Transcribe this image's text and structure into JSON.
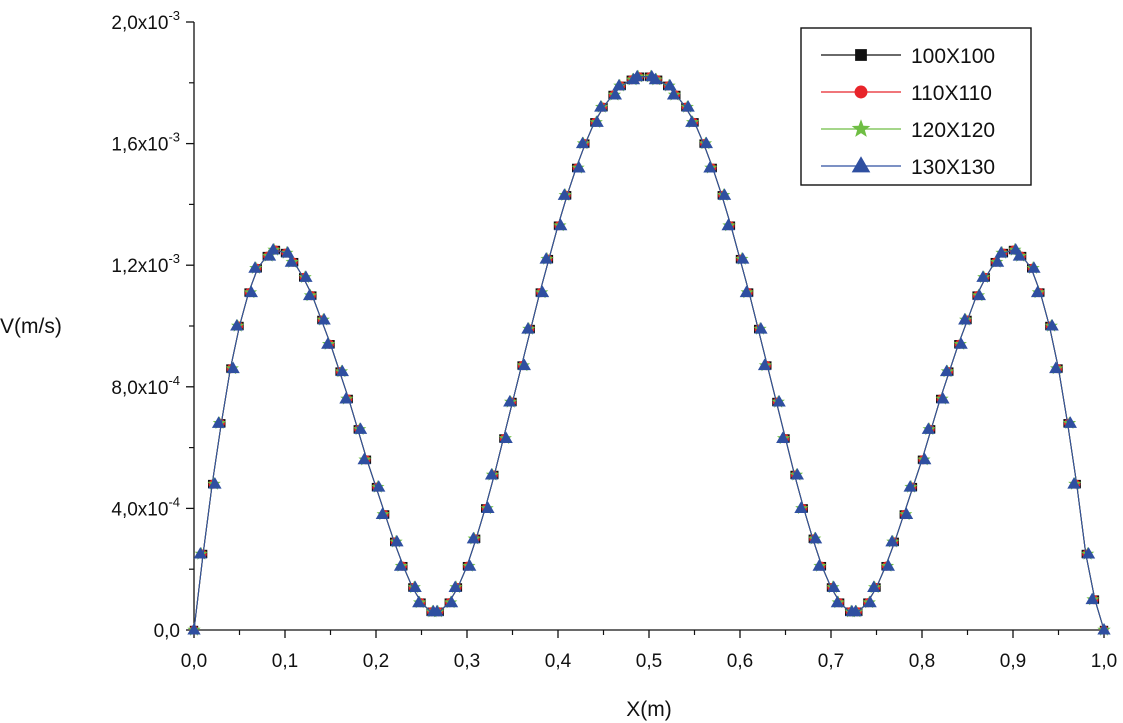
{
  "chart_data": {
    "type": "line",
    "title": "",
    "xlabel": "X(m)",
    "ylabel": "V(m/s)",
    "xlim": [
      0,
      1
    ],
    "ylim": [
      0,
      0.002
    ],
    "x_ticks": [
      {
        "value": 0.0,
        "label": "0,0"
      },
      {
        "value": 0.1,
        "label": "0,1"
      },
      {
        "value": 0.2,
        "label": "0,2"
      },
      {
        "value": 0.3,
        "label": "0,3"
      },
      {
        "value": 0.4,
        "label": "0,4"
      },
      {
        "value": 0.5,
        "label": "0,5"
      },
      {
        "value": 0.6,
        "label": "0,6"
      },
      {
        "value": 0.7,
        "label": "0,7"
      },
      {
        "value": 0.8,
        "label": "0,8"
      },
      {
        "value": 0.9,
        "label": "0,9"
      },
      {
        "value": 1.0,
        "label": "1,0"
      }
    ],
    "y_ticks": [
      {
        "value": 0,
        "mantissa": "0,0",
        "exponent": ""
      },
      {
        "value": 0.0004,
        "mantissa": "4,0x10",
        "exponent": "-4"
      },
      {
        "value": 0.0008,
        "mantissa": "8,0x10",
        "exponent": "-4"
      },
      {
        "value": 0.0012,
        "mantissa": "1,2x10",
        "exponent": "-3"
      },
      {
        "value": 0.0016,
        "mantissa": "1,6x10",
        "exponent": "-3"
      },
      {
        "value": 0.002,
        "mantissa": "2,0x10",
        "exponent": "-3"
      }
    ],
    "grid": false,
    "legend_position": "top-right",
    "series": [
      {
        "name": "100X100",
        "color": "#111111",
        "marker": "square",
        "x": [
          0,
          0.01,
          0.02,
          0.03,
          0.04,
          0.05,
          0.06,
          0.07,
          0.08,
          0.09,
          0.1,
          0.11,
          0.12,
          0.13,
          0.14,
          0.15,
          0.16,
          0.17,
          0.18,
          0.19,
          0.2,
          0.21,
          0.22,
          0.23,
          0.24,
          0.25,
          0.26,
          0.27,
          0.28,
          0.29,
          0.3,
          0.31,
          0.32,
          0.33,
          0.34,
          0.35,
          0.36,
          0.37,
          0.38,
          0.39,
          0.4,
          0.41,
          0.42,
          0.43,
          0.44,
          0.45,
          0.46,
          0.47,
          0.48,
          0.49,
          0.5,
          0.51,
          0.52,
          0.53,
          0.54,
          0.55,
          0.56,
          0.57,
          0.58,
          0.59,
          0.6,
          0.61,
          0.62,
          0.63,
          0.64,
          0.65,
          0.66,
          0.67,
          0.68,
          0.69,
          0.7,
          0.71,
          0.72,
          0.73,
          0.74,
          0.75,
          0.76,
          0.77,
          0.78,
          0.79,
          0.8,
          0.81,
          0.82,
          0.83,
          0.84,
          0.85,
          0.86,
          0.87,
          0.88,
          0.89,
          0.9,
          0.91,
          0.92,
          0.93,
          0.94,
          0.95,
          0.96,
          0.97,
          0.98,
          0.99,
          1
        ],
        "y": [
          0,
          0.00025,
          0.00048,
          0.00068,
          0.00086,
          0.001,
          0.00111,
          0.00119,
          0.00123,
          0.00125,
          0.00124,
          0.00121,
          0.00116,
          0.0011,
          0.00102,
          0.00094,
          0.00085,
          0.00076,
          0.00066,
          0.00056,
          0.00047,
          0.00038,
          0.00029,
          0.00021,
          0.00014,
          9e-05,
          6e-05,
          6e-05,
          9e-05,
          0.00014,
          0.00021,
          0.0003,
          0.0004,
          0.00051,
          0.00063,
          0.00075,
          0.00087,
          0.00099,
          0.00111,
          0.00122,
          0.00133,
          0.00143,
          0.00152,
          0.0016,
          0.00167,
          0.00172,
          0.00176,
          0.00179,
          0.00181,
          0.00182,
          0.00182,
          0.00181,
          0.00179,
          0.00176,
          0.00172,
          0.00167,
          0.0016,
          0.00152,
          0.00143,
          0.00133,
          0.00122,
          0.00111,
          0.00099,
          0.00087,
          0.00075,
          0.00063,
          0.00051,
          0.0004,
          0.0003,
          0.00021,
          0.00014,
          9e-05,
          6e-05,
          6e-05,
          9e-05,
          0.00014,
          0.00021,
          0.00029,
          0.00038,
          0.00047,
          0.00056,
          0.00066,
          0.00076,
          0.00085,
          0.00094,
          0.00102,
          0.0011,
          0.00116,
          0.00121,
          0.00124,
          0.00125,
          0.00123,
          0.00119,
          0.00111,
          0.001,
          0.00086,
          0.00068,
          0.00048,
          0.00025,
          0.0001,
          0
        ]
      },
      {
        "name": "110X110",
        "color": "#e8242a",
        "marker": "circle",
        "x": [
          0,
          0.01,
          0.02,
          0.03,
          0.04,
          0.05,
          0.06,
          0.07,
          0.08,
          0.09,
          0.1,
          0.11,
          0.12,
          0.13,
          0.14,
          0.15,
          0.16,
          0.17,
          0.18,
          0.19,
          0.2,
          0.21,
          0.22,
          0.23,
          0.24,
          0.25,
          0.26,
          0.27,
          0.28,
          0.29,
          0.3,
          0.31,
          0.32,
          0.33,
          0.34,
          0.35,
          0.36,
          0.37,
          0.38,
          0.39,
          0.4,
          0.41,
          0.42,
          0.43,
          0.44,
          0.45,
          0.46,
          0.47,
          0.48,
          0.49,
          0.5,
          0.51,
          0.52,
          0.53,
          0.54,
          0.55,
          0.56,
          0.57,
          0.58,
          0.59,
          0.6,
          0.61,
          0.62,
          0.63,
          0.64,
          0.65,
          0.66,
          0.67,
          0.68,
          0.69,
          0.7,
          0.71,
          0.72,
          0.73,
          0.74,
          0.75,
          0.76,
          0.77,
          0.78,
          0.79,
          0.8,
          0.81,
          0.82,
          0.83,
          0.84,
          0.85,
          0.86,
          0.87,
          0.88,
          0.89,
          0.9,
          0.91,
          0.92,
          0.93,
          0.94,
          0.95,
          0.96,
          0.97,
          0.98,
          0.99,
          1
        ],
        "y": [
          0,
          0.00025,
          0.00048,
          0.00068,
          0.00086,
          0.001,
          0.00111,
          0.00119,
          0.00123,
          0.00125,
          0.00124,
          0.00121,
          0.00116,
          0.0011,
          0.00102,
          0.00094,
          0.00085,
          0.00076,
          0.00066,
          0.00056,
          0.00047,
          0.00038,
          0.00029,
          0.00021,
          0.00014,
          9e-05,
          6e-05,
          6e-05,
          9e-05,
          0.00014,
          0.00021,
          0.0003,
          0.0004,
          0.00051,
          0.00063,
          0.00075,
          0.00087,
          0.00099,
          0.00111,
          0.00122,
          0.00133,
          0.00143,
          0.00152,
          0.0016,
          0.00167,
          0.00172,
          0.00176,
          0.00179,
          0.00181,
          0.00182,
          0.00182,
          0.00181,
          0.00179,
          0.00176,
          0.00172,
          0.00167,
          0.0016,
          0.00152,
          0.00143,
          0.00133,
          0.00122,
          0.00111,
          0.00099,
          0.00087,
          0.00075,
          0.00063,
          0.00051,
          0.0004,
          0.0003,
          0.00021,
          0.00014,
          9e-05,
          6e-05,
          6e-05,
          9e-05,
          0.00014,
          0.00021,
          0.00029,
          0.00038,
          0.00047,
          0.00056,
          0.00066,
          0.00076,
          0.00085,
          0.00094,
          0.00102,
          0.0011,
          0.00116,
          0.00121,
          0.00124,
          0.00125,
          0.00123,
          0.00119,
          0.00111,
          0.001,
          0.00086,
          0.00068,
          0.00048,
          0.00025,
          0.0001,
          0
        ]
      },
      {
        "name": "120X120",
        "color": "#6fbe44",
        "marker": "star",
        "x": [
          0,
          0.01,
          0.02,
          0.03,
          0.04,
          0.05,
          0.06,
          0.07,
          0.08,
          0.09,
          0.1,
          0.11,
          0.12,
          0.13,
          0.14,
          0.15,
          0.16,
          0.17,
          0.18,
          0.19,
          0.2,
          0.21,
          0.22,
          0.23,
          0.24,
          0.25,
          0.26,
          0.27,
          0.28,
          0.29,
          0.3,
          0.31,
          0.32,
          0.33,
          0.34,
          0.35,
          0.36,
          0.37,
          0.38,
          0.39,
          0.4,
          0.41,
          0.42,
          0.43,
          0.44,
          0.45,
          0.46,
          0.47,
          0.48,
          0.49,
          0.5,
          0.51,
          0.52,
          0.53,
          0.54,
          0.55,
          0.56,
          0.57,
          0.58,
          0.59,
          0.6,
          0.61,
          0.62,
          0.63,
          0.64,
          0.65,
          0.66,
          0.67,
          0.68,
          0.69,
          0.7,
          0.71,
          0.72,
          0.73,
          0.74,
          0.75,
          0.76,
          0.77,
          0.78,
          0.79,
          0.8,
          0.81,
          0.82,
          0.83,
          0.84,
          0.85,
          0.86,
          0.87,
          0.88,
          0.89,
          0.9,
          0.91,
          0.92,
          0.93,
          0.94,
          0.95,
          0.96,
          0.97,
          0.98,
          0.99,
          1
        ],
        "y": [
          0,
          0.00025,
          0.00048,
          0.00068,
          0.00086,
          0.001,
          0.00111,
          0.00119,
          0.00123,
          0.00125,
          0.00124,
          0.00121,
          0.00116,
          0.0011,
          0.00102,
          0.00094,
          0.00085,
          0.00076,
          0.00066,
          0.00056,
          0.00047,
          0.00038,
          0.00029,
          0.00021,
          0.00014,
          9e-05,
          6e-05,
          6e-05,
          9e-05,
          0.00014,
          0.00021,
          0.0003,
          0.0004,
          0.00051,
          0.00063,
          0.00075,
          0.00087,
          0.00099,
          0.00111,
          0.00122,
          0.00133,
          0.00143,
          0.00152,
          0.0016,
          0.00167,
          0.00172,
          0.00176,
          0.00179,
          0.00181,
          0.00182,
          0.00182,
          0.00181,
          0.00179,
          0.00176,
          0.00172,
          0.00167,
          0.0016,
          0.00152,
          0.00143,
          0.00133,
          0.00122,
          0.00111,
          0.00099,
          0.00087,
          0.00075,
          0.00063,
          0.00051,
          0.0004,
          0.0003,
          0.00021,
          0.00014,
          9e-05,
          6e-05,
          6e-05,
          9e-05,
          0.00014,
          0.00021,
          0.00029,
          0.00038,
          0.00047,
          0.00056,
          0.00066,
          0.00076,
          0.00085,
          0.00094,
          0.00102,
          0.0011,
          0.00116,
          0.00121,
          0.00124,
          0.00125,
          0.00123,
          0.00119,
          0.00111,
          0.001,
          0.00086,
          0.00068,
          0.00048,
          0.00025,
          0.0001,
          0
        ]
      },
      {
        "name": "130X130",
        "color": "#2f4fa0",
        "marker": "triangle",
        "x": [
          0,
          0.01,
          0.02,
          0.03,
          0.04,
          0.05,
          0.06,
          0.07,
          0.08,
          0.09,
          0.1,
          0.11,
          0.12,
          0.13,
          0.14,
          0.15,
          0.16,
          0.17,
          0.18,
          0.19,
          0.2,
          0.21,
          0.22,
          0.23,
          0.24,
          0.25,
          0.26,
          0.27,
          0.28,
          0.29,
          0.3,
          0.31,
          0.32,
          0.33,
          0.34,
          0.35,
          0.36,
          0.37,
          0.38,
          0.39,
          0.4,
          0.41,
          0.42,
          0.43,
          0.44,
          0.45,
          0.46,
          0.47,
          0.48,
          0.49,
          0.5,
          0.51,
          0.52,
          0.53,
          0.54,
          0.55,
          0.56,
          0.57,
          0.58,
          0.59,
          0.6,
          0.61,
          0.62,
          0.63,
          0.64,
          0.65,
          0.66,
          0.67,
          0.68,
          0.69,
          0.7,
          0.71,
          0.72,
          0.73,
          0.74,
          0.75,
          0.76,
          0.77,
          0.78,
          0.79,
          0.8,
          0.81,
          0.82,
          0.83,
          0.84,
          0.85,
          0.86,
          0.87,
          0.88,
          0.89,
          0.9,
          0.91,
          0.92,
          0.93,
          0.94,
          0.95,
          0.96,
          0.97,
          0.98,
          0.99,
          1
        ],
        "y": [
          0,
          0.00025,
          0.00048,
          0.00068,
          0.00086,
          0.001,
          0.00111,
          0.00119,
          0.00123,
          0.00125,
          0.00124,
          0.00121,
          0.00116,
          0.0011,
          0.00102,
          0.00094,
          0.00085,
          0.00076,
          0.00066,
          0.00056,
          0.00047,
          0.00038,
          0.00029,
          0.00021,
          0.00014,
          9e-05,
          6e-05,
          6e-05,
          9e-05,
          0.00014,
          0.00021,
          0.0003,
          0.0004,
          0.00051,
          0.00063,
          0.00075,
          0.00087,
          0.00099,
          0.00111,
          0.00122,
          0.00133,
          0.00143,
          0.00152,
          0.0016,
          0.00167,
          0.00172,
          0.00176,
          0.00179,
          0.00181,
          0.00182,
          0.00182,
          0.00181,
          0.00179,
          0.00176,
          0.00172,
          0.00167,
          0.0016,
          0.00152,
          0.00143,
          0.00133,
          0.00122,
          0.00111,
          0.00099,
          0.00087,
          0.00075,
          0.00063,
          0.00051,
          0.0004,
          0.0003,
          0.00021,
          0.00014,
          9e-05,
          6e-05,
          6e-05,
          9e-05,
          0.00014,
          0.00021,
          0.00029,
          0.00038,
          0.00047,
          0.00056,
          0.00066,
          0.00076,
          0.00085,
          0.00094,
          0.00102,
          0.0011,
          0.00116,
          0.00121,
          0.00124,
          0.00125,
          0.00123,
          0.00119,
          0.00111,
          0.001,
          0.00086,
          0.00068,
          0.00048,
          0.00025,
          0.0001,
          0
        ]
      }
    ]
  }
}
